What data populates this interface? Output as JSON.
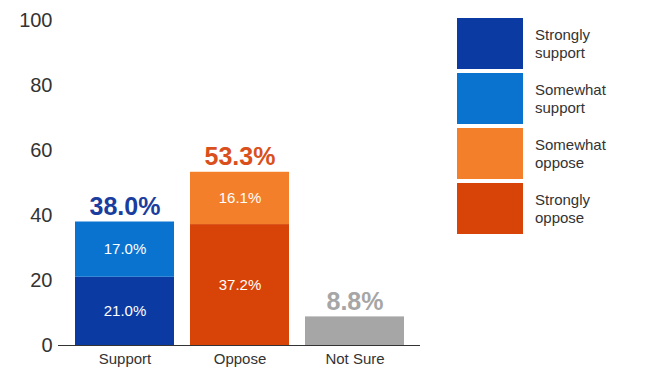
{
  "chart_data": {
    "type": "bar",
    "stacked": true,
    "data_labels": true,
    "grid": false,
    "legend": "right",
    "categories": [
      "Support",
      "Oppose",
      "Not Sure"
    ],
    "ylim": [
      0,
      100
    ],
    "yticks": [
      0,
      20,
      40,
      60,
      80,
      100
    ],
    "series": [
      {
        "name": "Strongly support",
        "color": "#0b3aa3",
        "values": [
          21.0,
          null,
          null
        ],
        "value_labels": [
          "21.0%",
          null,
          null
        ]
      },
      {
        "name": "Somewhat support",
        "color": "#0a73cf",
        "values": [
          17.0,
          null,
          null
        ],
        "value_labels": [
          "17.0%",
          null,
          null
        ]
      },
      {
        "name": "Somewhat oppose",
        "color": "#f47f2a",
        "values": [
          null,
          16.1,
          null
        ],
        "value_labels": [
          null,
          "16.1%",
          null
        ]
      },
      {
        "name": "Strongly oppose",
        "color": "#d84407",
        "values": [
          null,
          37.2,
          null
        ],
        "value_labels": [
          null,
          "37.2%",
          null
        ]
      },
      {
        "name": "Not Sure",
        "color": "#a6a6a6",
        "values": [
          null,
          null,
          8.8
        ]
      }
    ],
    "totals": {
      "values": [
        38.0,
        53.3,
        8.8
      ],
      "value_labels": [
        "38.0%",
        "53.3%",
        "8.8%"
      ],
      "colors": [
        "#1a3d9e",
        "#d9501c",
        "#a6a6a6"
      ]
    }
  }
}
